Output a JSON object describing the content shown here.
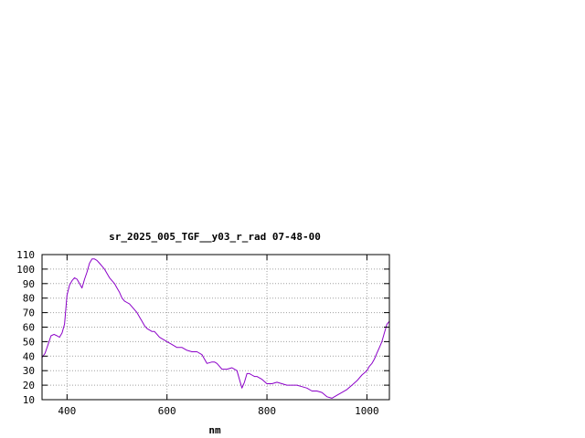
{
  "chart_data": {
    "type": "line",
    "title": "sr_2025_005_TGF__y03_r_rad 07-48-00",
    "xlabel": "nm",
    "ylabel": "",
    "xlim": [
      350,
      1045
    ],
    "ylim": [
      10,
      110
    ],
    "xticks": [
      400,
      600,
      800,
      1000
    ],
    "yticks": [
      10,
      20,
      30,
      40,
      50,
      60,
      70,
      80,
      90,
      100,
      110
    ],
    "grid": true,
    "series": [
      {
        "color": "#8b00c8",
        "x": [
          350,
          356,
          362,
          368,
          374,
          380,
          385,
          390,
          395,
          400,
          405,
          410,
          415,
          420,
          425,
          430,
          435,
          440,
          445,
          450,
          455,
          460,
          465,
          470,
          475,
          480,
          485,
          490,
          495,
          500,
          505,
          510,
          515,
          520,
          525,
          530,
          535,
          540,
          545,
          550,
          555,
          560,
          565,
          570,
          575,
          580,
          585,
          590,
          595,
          600,
          610,
          620,
          630,
          640,
          650,
          660,
          670,
          680,
          690,
          695,
          700,
          710,
          720,
          730,
          740,
          750,
          755,
          760,
          765,
          770,
          775,
          780,
          790,
          800,
          810,
          820,
          830,
          840,
          850,
          860,
          870,
          880,
          890,
          900,
          910,
          920,
          930,
          940,
          950,
          960,
          970,
          980,
          990,
          1000,
          1005,
          1010,
          1015,
          1020,
          1025,
          1030,
          1035,
          1040,
          1045
        ],
        "y": [
          39,
          42,
          48,
          54,
          55,
          54,
          53,
          56,
          62,
          82,
          89,
          92,
          94,
          93,
          90,
          87,
          93,
          98,
          104,
          107,
          107,
          106,
          104,
          102,
          100,
          97,
          94,
          92,
          90,
          87,
          84,
          80,
          78,
          77,
          76,
          74,
          72,
          70,
          67,
          64,
          61,
          59,
          58,
          57,
          57,
          55,
          53,
          52,
          51,
          50,
          48,
          46,
          46,
          44,
          43,
          43,
          41,
          35,
          36,
          36,
          35,
          31,
          31,
          32,
          30,
          18,
          22,
          28,
          28,
          27,
          26,
          26,
          24,
          21,
          21,
          22,
          21,
          20,
          20,
          20,
          19,
          18,
          16,
          16,
          15,
          12,
          11,
          13,
          15,
          17,
          20,
          23,
          27,
          30,
          33,
          35,
          38,
          42,
          46,
          50,
          56,
          62,
          64
        ]
      }
    ]
  }
}
